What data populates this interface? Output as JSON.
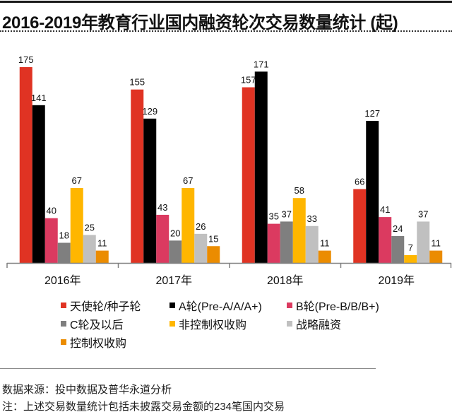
{
  "chart_data": {
    "type": "bar",
    "title": "2016-2019年教育行业国内融资轮次交易数量统计 (起)",
    "xlabel": "",
    "ylabel": "",
    "ylim": [
      0,
      175
    ],
    "grid": false,
    "legend_placement": "bottom",
    "categories": [
      "2016年",
      "2017年",
      "2018年",
      "2019年"
    ],
    "series": [
      {
        "name": "天使轮/种子轮",
        "color": "#e03323",
        "values": [
          175,
          155,
          157,
          66
        ]
      },
      {
        "name": "A轮(Pre-A/A/A+)",
        "color": "#000000",
        "values": [
          141,
          129,
          171,
          127
        ]
      },
      {
        "name": "B轮(Pre-B/B/B+)",
        "color": "#db3a60",
        "values": [
          40,
          43,
          35,
          41
        ]
      },
      {
        "name": "C轮及以后",
        "color": "#7f7f7f",
        "values": [
          18,
          20,
          37,
          24
        ]
      },
      {
        "name": "非控制权收购",
        "color": "#ffb600",
        "values": [
          67,
          67,
          58,
          7
        ]
      },
      {
        "name": "战略融资",
        "color": "#c0c0c0",
        "values": [
          25,
          26,
          33,
          37
        ]
      },
      {
        "name": "控制权收购",
        "color": "#eb8c00",
        "values": [
          11,
          15,
          11,
          11
        ]
      }
    ]
  },
  "notes": {
    "source": "数据来源：投中数据及普华永道分析",
    "footnote": "注：上述交易数量统计包括未披露交易金额的234笔国内交易"
  }
}
